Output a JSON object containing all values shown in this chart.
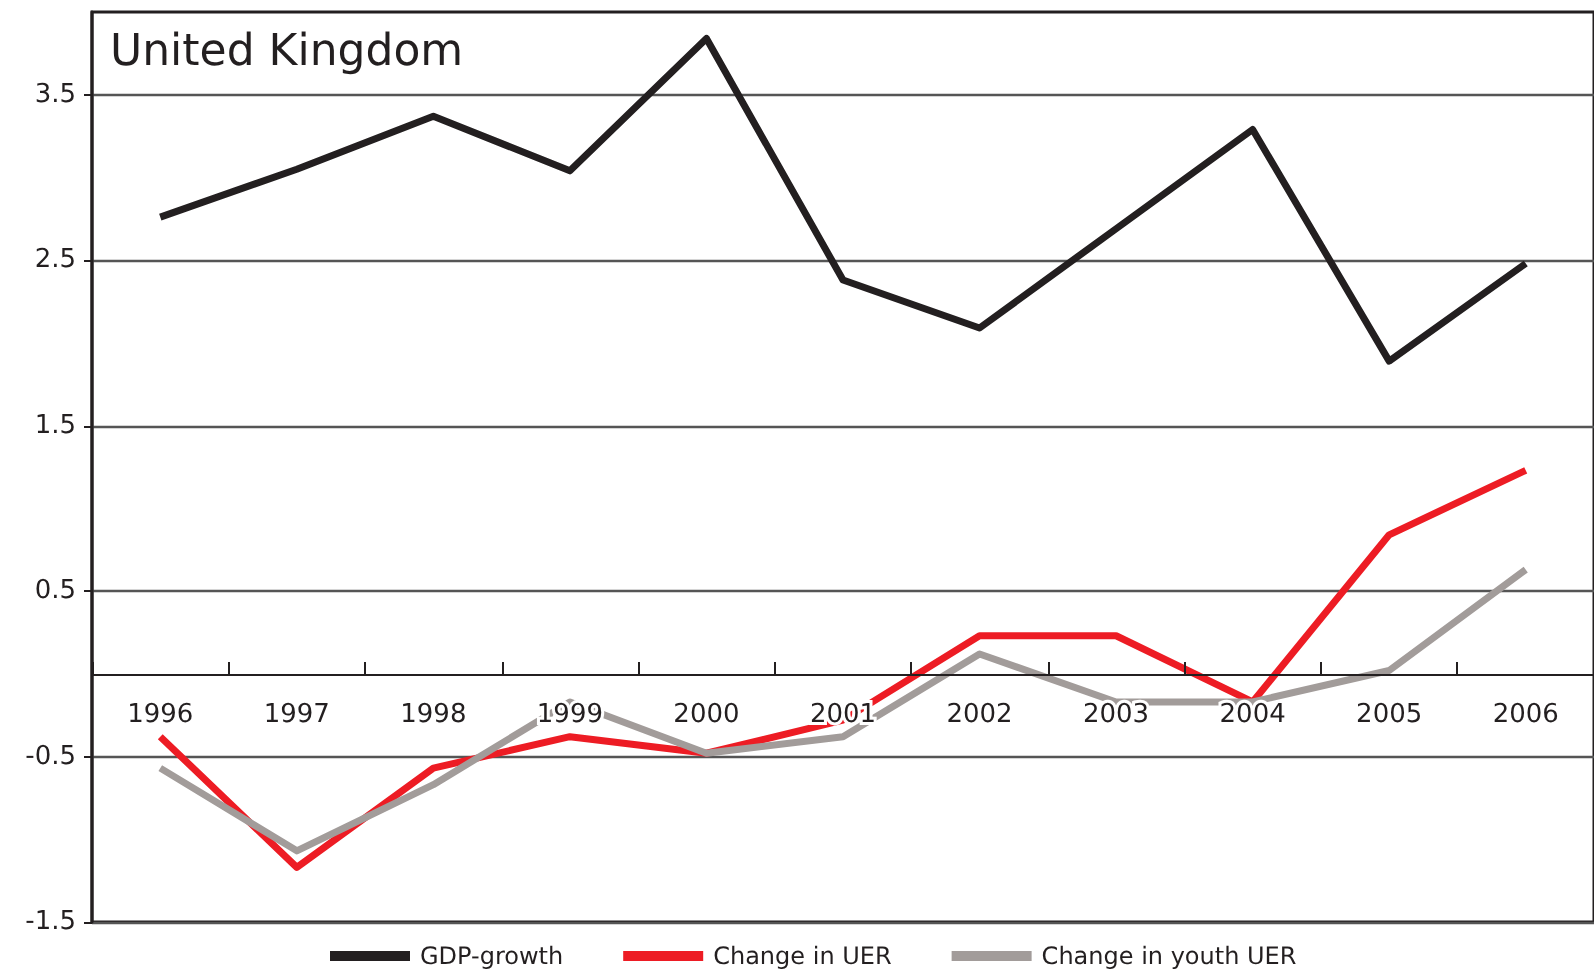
{
  "chart_data": {
    "type": "line",
    "title": "United Kingdom",
    "categories": [
      "1996",
      "1997",
      "1998",
      "1999",
      "2000",
      "2001",
      "2002",
      "2003",
      "2004",
      "2005",
      "2006"
    ],
    "series": [
      {
        "name": "GDP-growth",
        "color": "#231f20",
        "values": [
          2.76,
          3.05,
          3.37,
          3.04,
          3.84,
          2.38,
          2.09,
          2.69,
          3.29,
          1.89,
          2.48
        ]
      },
      {
        "name": "Change in UER",
        "color": "#ed1c24",
        "values": [
          -0.38,
          -1.17,
          -0.57,
          -0.38,
          -0.48,
          -0.28,
          0.23,
          0.23,
          -0.17,
          0.84,
          1.23
        ]
      },
      {
        "name": "Change in youth UER",
        "color": "#a29c9a",
        "values": [
          -0.57,
          -1.07,
          -0.67,
          -0.17,
          -0.48,
          -0.38,
          0.12,
          -0.17,
          -0.17,
          0.02,
          0.63
        ]
      }
    ],
    "ylim": [
      -1.5,
      4.0
    ],
    "yticks": [
      -1.5,
      -0.5,
      0.5,
      1.5,
      2.5,
      3.5
    ],
    "grid": "y",
    "legend": "bottom",
    "marker": "none",
    "line_style": "solid"
  }
}
